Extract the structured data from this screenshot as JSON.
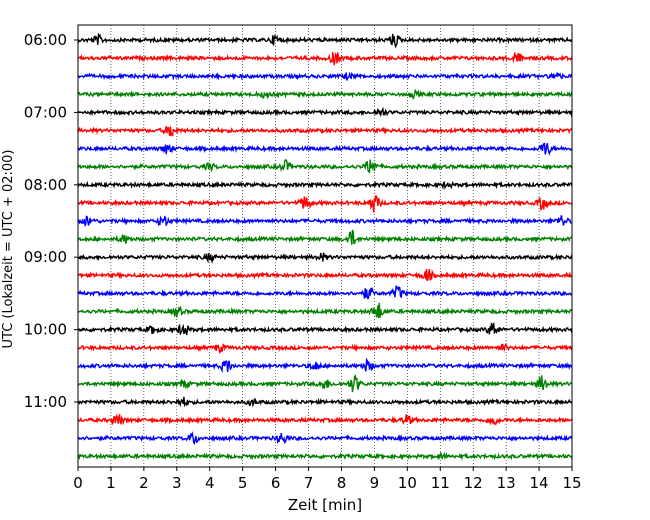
{
  "chart_data": {
    "type": "line",
    "xlabel": "Zeit  [min]",
    "ylabel": "UTC (Lokalzeit = UTC + 02:00)",
    "xlim": [
      0,
      15
    ],
    "x_ticks": [
      0,
      1,
      2,
      3,
      4,
      5,
      6,
      7,
      8,
      9,
      10,
      11,
      12,
      13,
      14,
      15
    ],
    "x_tick_labels": [
      "0",
      "1",
      "2",
      "3",
      "4",
      "5",
      "6",
      "7",
      "8",
      "9",
      "10",
      "11",
      "12",
      "13",
      "14",
      "15"
    ],
    "y_tick_labels": [
      "06:00",
      "07:00",
      "08:00",
      "09:00",
      "10:00",
      "11:00"
    ],
    "y_tick_rows": [
      0,
      4,
      8,
      12,
      16,
      20
    ],
    "grid": "vertical dotted",
    "trace_colors": [
      "#000000",
      "#ff0000",
      "#0000ff",
      "#008000"
    ],
    "row_minutes": 15,
    "traces": [
      {
        "start": "06:00",
        "color": "#000000",
        "events": [
          [
            0.6,
            0.6
          ],
          [
            6.0,
            0.7
          ],
          [
            9.6,
            0.9
          ]
        ]
      },
      {
        "start": "06:15",
        "color": "#ff0000",
        "events": [
          [
            7.8,
            0.9
          ],
          [
            13.3,
            0.8
          ]
        ]
      },
      {
        "start": "06:30",
        "color": "#0000ff",
        "events": [
          [
            8.2,
            0.4
          ],
          [
            14.5,
            0.6
          ]
        ]
      },
      {
        "start": "06:45",
        "color": "#008000",
        "events": [
          [
            5.7,
            0.4
          ],
          [
            10.2,
            0.4
          ]
        ]
      },
      {
        "start": "07:00",
        "color": "#000000",
        "events": [
          [
            9.2,
            0.5
          ]
        ]
      },
      {
        "start": "07:15",
        "color": "#ff0000",
        "events": [
          [
            2.8,
            0.9
          ]
        ]
      },
      {
        "start": "07:30",
        "color": "#0000ff",
        "events": [
          [
            2.7,
            0.7
          ],
          [
            14.2,
            1.1
          ]
        ]
      },
      {
        "start": "07:45",
        "color": "#008000",
        "events": [
          [
            4.0,
            0.4
          ],
          [
            6.3,
            0.8
          ],
          [
            8.9,
            1.3
          ]
        ]
      },
      {
        "start": "08:00",
        "color": "#000000",
        "events": [
          [
            11.2,
            0.3
          ]
        ]
      },
      {
        "start": "08:15",
        "color": "#ff0000",
        "events": [
          [
            6.9,
            1.0
          ],
          [
            9.0,
            1.3
          ],
          [
            14.1,
            0.9
          ]
        ]
      },
      {
        "start": "08:30",
        "color": "#0000ff",
        "events": [
          [
            0.3,
            0.7
          ],
          [
            2.6,
            0.8
          ],
          [
            14.7,
            0.8
          ]
        ]
      },
      {
        "start": "08:45",
        "color": "#008000",
        "events": [
          [
            1.4,
            0.6
          ],
          [
            8.3,
            1.2
          ]
        ]
      },
      {
        "start": "09:00",
        "color": "#000000",
        "events": [
          [
            4.0,
            0.5
          ],
          [
            7.4,
            0.5
          ]
        ]
      },
      {
        "start": "09:15",
        "color": "#ff0000",
        "events": [
          [
            10.6,
            0.9
          ]
        ]
      },
      {
        "start": "09:30",
        "color": "#0000ff",
        "events": [
          [
            8.8,
            0.9
          ],
          [
            9.7,
            1.0
          ]
        ]
      },
      {
        "start": "09:45",
        "color": "#008000",
        "events": [
          [
            3.0,
            0.7
          ],
          [
            9.1,
            1.3
          ]
        ]
      },
      {
        "start": "10:00",
        "color": "#000000",
        "events": [
          [
            2.3,
            0.6
          ],
          [
            3.2,
            1.0
          ],
          [
            12.6,
            1.1
          ]
        ]
      },
      {
        "start": "10:15",
        "color": "#ff0000",
        "events": [
          [
            4.3,
            0.5
          ],
          [
            12.9,
            0.4
          ]
        ]
      },
      {
        "start": "10:30",
        "color": "#0000ff",
        "events": [
          [
            4.5,
            1.0
          ],
          [
            7.2,
            0.6
          ],
          [
            8.8,
            0.8
          ]
        ]
      },
      {
        "start": "10:45",
        "color": "#008000",
        "events": [
          [
            3.2,
            0.5
          ],
          [
            7.5,
            0.7
          ],
          [
            8.4,
            1.3
          ],
          [
            14.1,
            1.2
          ]
        ]
      },
      {
        "start": "11:00",
        "color": "#000000",
        "events": [
          [
            3.2,
            0.6
          ],
          [
            5.3,
            0.4
          ]
        ]
      },
      {
        "start": "11:15",
        "color": "#ff0000",
        "events": [
          [
            1.2,
            0.8
          ],
          [
            10.0,
            0.7
          ],
          [
            12.6,
            0.7
          ]
        ]
      },
      {
        "start": "11:30",
        "color": "#0000ff",
        "events": [
          [
            3.5,
            0.8
          ],
          [
            6.2,
            0.8
          ]
        ]
      },
      {
        "start": "11:45",
        "color": "#008000",
        "events": [
          [
            11.0,
            0.3
          ]
        ]
      }
    ]
  }
}
